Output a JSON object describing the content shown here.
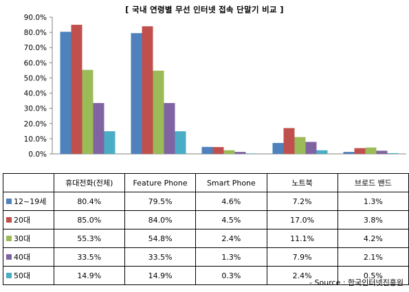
{
  "chart_data": {
    "type": "bar",
    "title": "[ 국내 연령별 무선 인터넷 접속 단말기 비교 ]",
    "categories": [
      "휴대전화(전체)",
      "Feature Phone",
      "Smart Phone",
      "노트북",
      "브로드 밴드"
    ],
    "series": [
      {
        "name": "12~19세",
        "color": "#4F81BD",
        "values": [
          80.4,
          79.5,
          4.6,
          7.2,
          1.3
        ],
        "labels": [
          "80.4%",
          "79.5%",
          "4.6%",
          "7.2%",
          "1.3%"
        ]
      },
      {
        "name": "20대",
        "color": "#C0504D",
        "values": [
          85.0,
          84.0,
          4.5,
          17.0,
          3.8
        ],
        "labels": [
          "85.0%",
          "84.0%",
          "4.5%",
          "17.0%",
          "3.8%"
        ]
      },
      {
        "name": "30대",
        "color": "#9BBB59",
        "values": [
          55.3,
          54.8,
          2.4,
          11.1,
          4.2
        ],
        "labels": [
          "55.3%",
          "54.8%",
          "2.4%",
          "11.1%",
          "4.2%"
        ]
      },
      {
        "name": "40대",
        "color": "#8064A2",
        "values": [
          33.5,
          33.5,
          1.3,
          7.9,
          2.1
        ],
        "labels": [
          "33.5%",
          "33.5%",
          "1.3%",
          "7.9%",
          "2.1%"
        ]
      },
      {
        "name": "50대",
        "color": "#4BACC6",
        "values": [
          14.9,
          14.9,
          0.3,
          2.4,
          0.5
        ],
        "labels": [
          "14.9%",
          "14.9%",
          "0.3%",
          "2.4%",
          "0.5%"
        ]
      }
    ],
    "ylim": [
      0,
      90
    ],
    "yticks": [
      "0.0%",
      "10.0%",
      "20.0%",
      "30.0%",
      "40.0%",
      "50.0%",
      "60.0%",
      "70.0%",
      "80.0%",
      "90.0%"
    ],
    "grid": false,
    "legend": "data table"
  },
  "source": "- Source : 한국인터넷진흥원"
}
